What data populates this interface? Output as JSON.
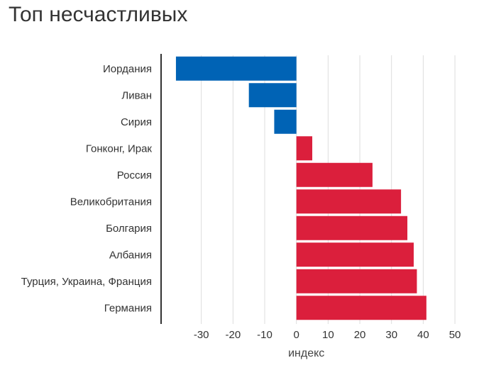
{
  "chart_data": {
    "type": "bar",
    "orientation": "horizontal",
    "title": "Топ несчастливых",
    "xlabel": "индекс",
    "ylabel": "",
    "categories": [
      "Иордания",
      "Ливан",
      "Сирия",
      "Гонконг, Ирак",
      "Россия",
      "Великобритания",
      "Болгария",
      "Албания",
      "Турция, Украина, Франция",
      "Германия"
    ],
    "values": [
      -38,
      -15,
      -7,
      5,
      24,
      33,
      35,
      37,
      38,
      41
    ],
    "xlim": [
      -40,
      52
    ],
    "xticks": [
      -30,
      -20,
      -10,
      0,
      10,
      20,
      30,
      40,
      50
    ],
    "grid": true,
    "colors": {
      "negative": "#0063B5",
      "positive": "#DB1F3C",
      "grid": "#DDDDDD",
      "axis": "#333333",
      "text": "#333333"
    }
  }
}
